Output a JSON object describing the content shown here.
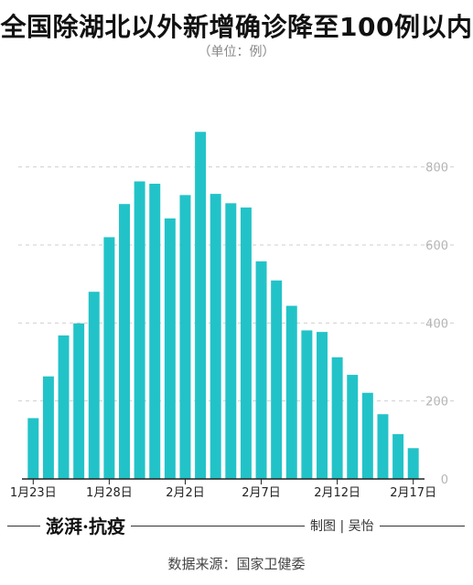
{
  "title": "全国除湖北以外新增确诊降至100例以内",
  "unit": "（单位：例）",
  "brand": "澎湃·抗疫",
  "credit": "制图 | 吴怡",
  "source": "数据来源：国家卫健委",
  "colors": {
    "bar": "#22c3c8",
    "grid": "#cfcfcf",
    "tick": "#b5b5b5",
    "axis": "#222222"
  },
  "chart_data": {
    "type": "bar",
    "title": "全国除湖北以外新增确诊降至100例以内",
    "subtitle": "（单位：例）",
    "xlabel": "",
    "ylabel": "",
    "ylim": [
      0,
      900
    ],
    "yticks": [
      0,
      200,
      400,
      600,
      800
    ],
    "grid": true,
    "legend": "none",
    "categories": [
      "1月23日",
      "1月24日",
      "1月25日",
      "1月26日",
      "1月27日",
      "1月28日",
      "1月29日",
      "1月30日",
      "1月31日",
      "2月1日",
      "2月2日",
      "2月3日",
      "2月4日",
      "2月5日",
      "2月6日",
      "2月7日",
      "2月8日",
      "2月9日",
      "2月10日",
      "2月11日",
      "2月12日",
      "2月13日",
      "2月14日",
      "2月15日",
      "2月16日",
      "2月17日"
    ],
    "labeled_ticks": [
      "1月23日",
      "1月28日",
      "2月2日",
      "2月7日",
      "2月12日",
      "2月17日"
    ],
    "values": [
      156,
      263,
      368,
      399,
      480,
      620,
      705,
      763,
      757,
      668,
      728,
      890,
      731,
      707,
      696,
      558,
      509,
      444,
      381,
      377,
      312,
      267,
      221,
      166,
      115,
      79
    ]
  }
}
